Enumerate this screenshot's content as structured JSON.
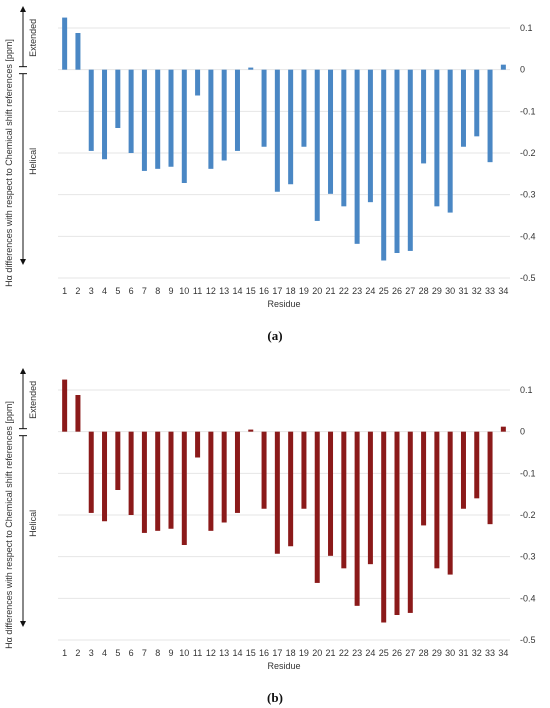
{
  "chart_data": [
    {
      "type": "bar",
      "panel_label": "a",
      "color": "#4a87c4",
      "xlabel": "Residue",
      "ylabel": "Hα differences with respect to Chemical shift references [ppm]",
      "region_labels": {
        "upper": "Extended",
        "lower": "Helical"
      },
      "ylim": [
        -0.5,
        0.1
      ],
      "yticks": [
        "0.1",
        "0",
        "-0.1",
        "-0.2",
        "-0.3",
        "-0.4",
        "-0.5"
      ],
      "categories": [
        "1",
        "2",
        "3",
        "4",
        "5",
        "6",
        "7",
        "8",
        "9",
        "10",
        "11",
        "12",
        "13",
        "14",
        "15",
        "16",
        "17",
        "18",
        "19",
        "20",
        "21",
        "22",
        "23",
        "24",
        "25",
        "26",
        "27",
        "28",
        "29",
        "30",
        "31",
        "32",
        "33",
        "34"
      ],
      "values": [
        0.125,
        0.088,
        -0.195,
        -0.215,
        -0.14,
        -0.2,
        -0.243,
        -0.238,
        -0.233,
        -0.272,
        -0.062,
        -0.238,
        -0.218,
        -0.195,
        0.005,
        -0.185,
        -0.293,
        -0.275,
        -0.185,
        -0.363,
        -0.298,
        -0.328,
        -0.418,
        -0.318,
        -0.458,
        -0.44,
        -0.435,
        -0.225,
        -0.328,
        -0.343,
        -0.185,
        -0.16,
        -0.222,
        0.012
      ]
    },
    {
      "type": "bar",
      "panel_label": "b",
      "color": "#8b1a1a",
      "xlabel": "Residue",
      "ylabel": "Hα differences with respect to Chemical shift references [ppm]",
      "region_labels": {
        "upper": "Extended",
        "lower": "Helical"
      },
      "ylim": [
        -0.5,
        0.1
      ],
      "yticks": [
        "0.1",
        "0",
        "-0.1",
        "-0.2",
        "-0.3",
        "-0.4",
        "-0.5"
      ],
      "categories": [
        "1",
        "2",
        "3",
        "4",
        "5",
        "6",
        "7",
        "8",
        "9",
        "10",
        "11",
        "12",
        "13",
        "14",
        "15",
        "16",
        "17",
        "18",
        "19",
        "20",
        "21",
        "22",
        "23",
        "24",
        "25",
        "26",
        "27",
        "28",
        "29",
        "30",
        "31",
        "32",
        "33",
        "34"
      ],
      "values": [
        0.125,
        0.088,
        -0.195,
        -0.215,
        -0.14,
        -0.2,
        -0.243,
        -0.238,
        -0.233,
        -0.272,
        -0.062,
        -0.238,
        -0.218,
        -0.195,
        0.005,
        -0.185,
        -0.293,
        -0.275,
        -0.185,
        -0.363,
        -0.298,
        -0.328,
        -0.418,
        -0.318,
        -0.458,
        -0.44,
        -0.435,
        -0.225,
        -0.328,
        -0.343,
        -0.185,
        -0.16,
        -0.222,
        0.012
      ]
    }
  ],
  "captions": [
    "(a)",
    "(b)"
  ]
}
